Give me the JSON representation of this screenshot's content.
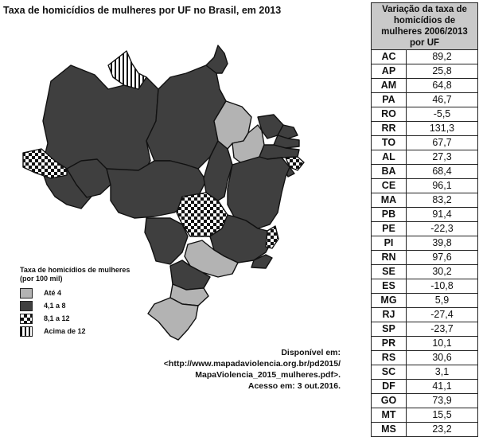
{
  "title": "Taxa de homicídios de mulheres por UF no Brasil, em 2013",
  "legend": {
    "title": "Taxa de homicídios de mulheres",
    "subtitle": "(por 100 mil)",
    "items": [
      {
        "label": "Até 4",
        "pattern": "light-gray",
        "color": "#b3b3b3"
      },
      {
        "label": "4,1 a 8",
        "pattern": "dark-gray",
        "color": "#3f3f3f"
      },
      {
        "label": "8,1 a 12",
        "pattern": "checkerboard",
        "color": "#111111"
      },
      {
        "label": "Acima de 12",
        "pattern": "vertical-stripes",
        "color": "#111111"
      }
    ]
  },
  "source": {
    "line1": "Disponível em:",
    "line2": "<http://www.mapadaviolencia.org.br/pd2015/",
    "line3": "MapaViolencia_2015_mulheres.pdf>.",
    "line4": "Acesso em: 3 out.2016."
  },
  "table": {
    "header": "Variação da taxa de homicídios de mulheres 2006/2013 por UF",
    "rows": [
      {
        "uf": "AC",
        "value": "89,2"
      },
      {
        "uf": "AP",
        "value": "25,8"
      },
      {
        "uf": "AM",
        "value": "64,8"
      },
      {
        "uf": "PA",
        "value": "46,7"
      },
      {
        "uf": "RO",
        "value": "-5,5"
      },
      {
        "uf": "RR",
        "value": "131,3"
      },
      {
        "uf": "TO",
        "value": "67,7"
      },
      {
        "uf": "AL",
        "value": "27,3"
      },
      {
        "uf": "BA",
        "value": "68,4"
      },
      {
        "uf": "CE",
        "value": "96,1"
      },
      {
        "uf": "MA",
        "value": "83,2"
      },
      {
        "uf": "PB",
        "value": "91,4"
      },
      {
        "uf": "PE",
        "value": "-22,3"
      },
      {
        "uf": "PI",
        "value": "39,8"
      },
      {
        "uf": "RN",
        "value": "97,6"
      },
      {
        "uf": "SE",
        "value": "30,2"
      },
      {
        "uf": "ES",
        "value": "-10,8"
      },
      {
        "uf": "MG",
        "value": "5,9"
      },
      {
        "uf": "RJ",
        "value": "-27,4"
      },
      {
        "uf": "SP",
        "value": "-23,7"
      },
      {
        "uf": "PR",
        "value": "10,1"
      },
      {
        "uf": "RS",
        "value": "30,6"
      },
      {
        "uf": "SC",
        "value": "3,1"
      },
      {
        "uf": "DF",
        "value": "41,1"
      },
      {
        "uf": "GO",
        "value": "73,9"
      },
      {
        "uf": "MT",
        "value": "15,5"
      },
      {
        "uf": "MS",
        "value": "23,2"
      }
    ]
  }
}
